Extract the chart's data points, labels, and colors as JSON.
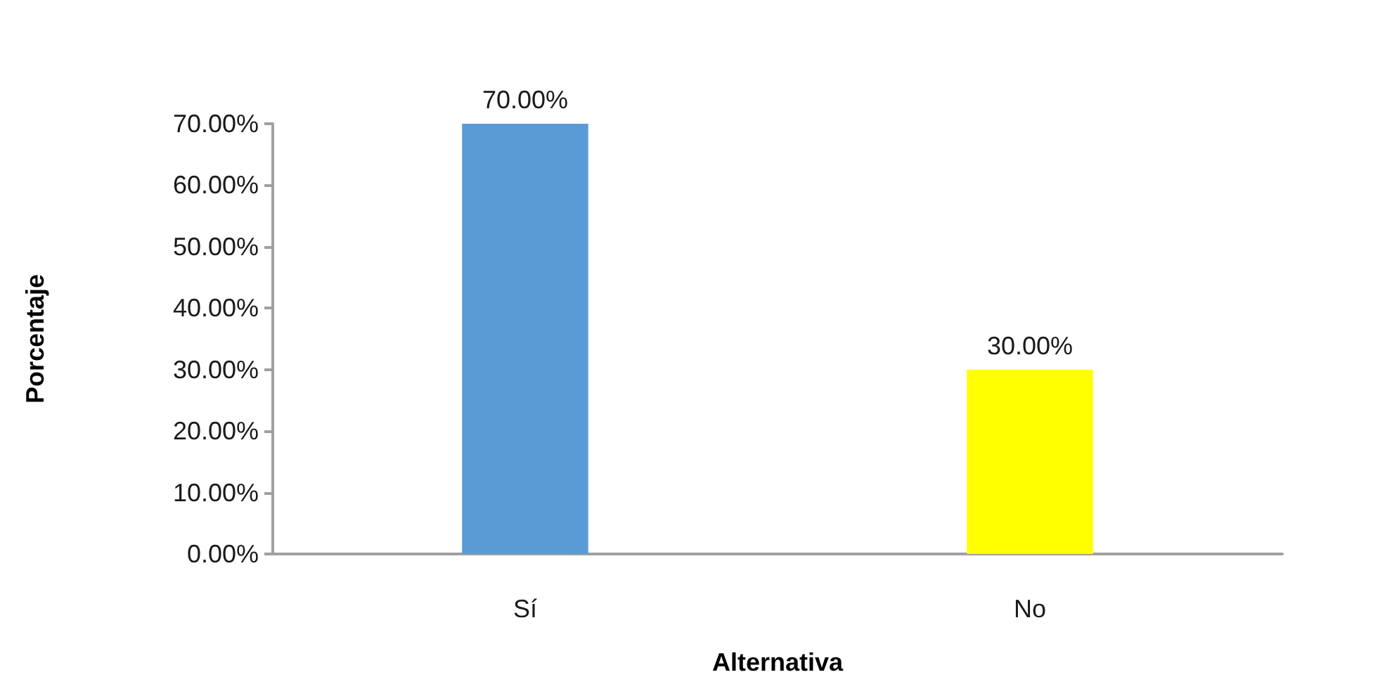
{
  "chart_data": {
    "type": "bar",
    "xlabel": "Alternativa",
    "ylabel": "Porcentaje",
    "categories": [
      "Sí",
      "No"
    ],
    "values": [
      70,
      30
    ],
    "colors": [
      "#5b9bd5",
      "#ffff00"
    ],
    "value_labels": [
      "70.00%",
      "30.00%"
    ],
    "ylim": [
      0,
      70
    ],
    "yticks": [
      {
        "value": 0,
        "label": "0.00%"
      },
      {
        "value": 10,
        "label": "10.00%"
      },
      {
        "value": 20,
        "label": "20.00%"
      },
      {
        "value": 30,
        "label": "30.00%"
      },
      {
        "value": 40,
        "label": "40.00%"
      },
      {
        "value": 50,
        "label": "50.00%"
      },
      {
        "value": 60,
        "label": "60.00%"
      },
      {
        "value": 70,
        "label": "70.00%"
      }
    ]
  }
}
